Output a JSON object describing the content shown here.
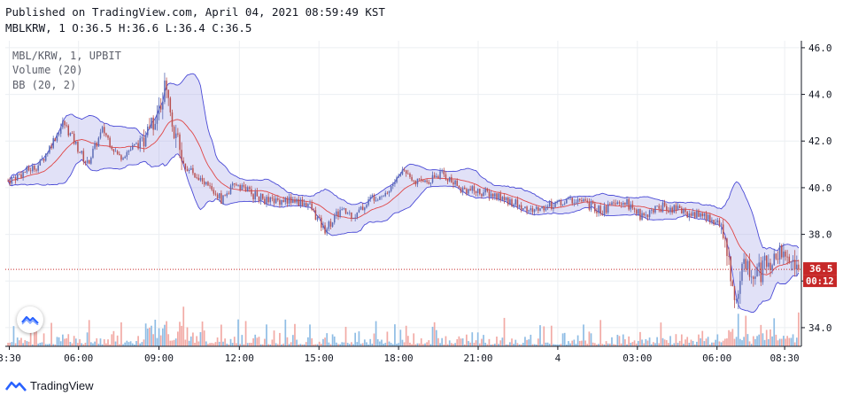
{
  "header": {
    "published": "Published on TradingView.com, April 04, 2021 08:59:49 KST",
    "ohlc": "MBLKRW, 1 O:36.5 H:36.6 L:36.4 C:36.5"
  },
  "legend": {
    "symbol": "MBL/KRW, 1, UPBIT",
    "volume": "Volume (20)",
    "bb": "BB (20, 2)"
  },
  "footer": {
    "brand": "TradingView",
    "logo_icon": "tradingview-logo-icon",
    "watermark_icon": "tradingview-watermark-icon"
  },
  "price_tags": {
    "last": "36.5",
    "countdown": "00:12"
  },
  "colors": {
    "up": "#26a69a",
    "down": "#ef5350",
    "candle_up": "#5b6bb5",
    "candle_down": "#b85050",
    "bb_band": "#4a4ad6",
    "bb_fill": "#9c9ce6",
    "basis": "#e04545",
    "vol_up": "#8fbde5",
    "vol_down": "#f2aaa5",
    "last_price": "#c62828",
    "grid": "#eceff2"
  },
  "chart_data": {
    "type": "candlestick",
    "title": "MBL/KRW, 1, UPBIT",
    "x_tick_labels": [
      "3:30",
      "06:00",
      "09:00",
      "12:00",
      "15:00",
      "18:00",
      "21:00",
      "4",
      "03:00",
      "06:00",
      "08:30"
    ],
    "y_tick_labels": [
      "34.0",
      "36.0",
      "38.0",
      "40.0",
      "42.0",
      "44.0",
      "46.0"
    ],
    "ylim": [
      33.2,
      46.3
    ],
    "last_price": 36.5,
    "grid": true,
    "legend_position": "top-left",
    "indicators": [
      "Volume (20)",
      "BB (20, 2)"
    ],
    "price_path": {
      "description": "approximate close-price waypoints read from chart (x as fraction of time span)",
      "x": [
        0.0,
        0.04,
        0.07,
        0.1,
        0.12,
        0.14,
        0.17,
        0.2,
        0.22,
        0.24,
        0.27,
        0.29,
        0.31,
        0.33,
        0.35,
        0.38,
        0.4,
        0.42,
        0.44,
        0.46,
        0.48,
        0.5,
        0.52,
        0.55,
        0.57,
        0.6,
        0.63,
        0.66,
        0.69,
        0.72,
        0.75,
        0.78,
        0.8,
        0.83,
        0.86,
        0.88,
        0.9,
        0.92,
        0.93,
        0.95,
        0.97,
        0.98,
        1.0
      ],
      "y": [
        40.3,
        41.0,
        42.8,
        41.0,
        42.5,
        41.3,
        42.0,
        44.2,
        41.0,
        40.5,
        39.5,
        40.2,
        39.7,
        39.4,
        39.5,
        39.3,
        38.2,
        39.0,
        38.8,
        39.6,
        39.8,
        40.8,
        40.2,
        40.6,
        40.0,
        39.8,
        39.5,
        39.0,
        39.3,
        39.5,
        39.0,
        39.4,
        38.8,
        39.2,
        38.9,
        38.8,
        38.4,
        35.5,
        36.8,
        36.4,
        37.2,
        36.9,
        36.5
      ]
    }
  }
}
